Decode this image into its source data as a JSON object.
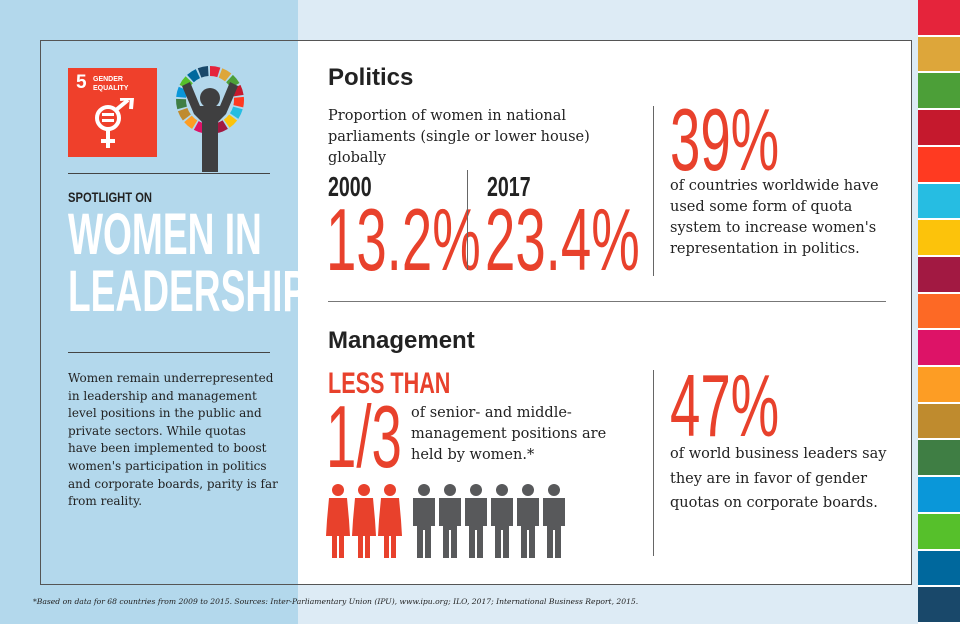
{
  "sdg_badge": {
    "number": "5",
    "title_line1": "GENDER",
    "title_line2": "EQUALITY"
  },
  "left": {
    "kicker": "SPOTLIGHT ON",
    "title_line1": "WOMEN IN",
    "title_line2": "LEADERSHIP",
    "body": "Women remain underrepresented in leadership and management level positions in the public and private sectors. While quotas have been implemented to boost women's participation in politics and corporate boards, parity is far from reality."
  },
  "politics": {
    "heading": "Politics",
    "subtitle": "Proportion of women in national parliaments (single or lower house) globally",
    "year1": "2000",
    "value1": "13.2%",
    "year2": "2017",
    "value2": "23.4%",
    "stat": "39%",
    "stat_text": "of countries worldwide have used some form of quota system to increase women's representation in politics."
  },
  "management": {
    "heading": "Management",
    "less_than": "LESS THAN",
    "fraction": "1/3",
    "fraction_text": "of senior- and middle-management positions are held by women.*",
    "people_highlighted": 3,
    "people_total": 9,
    "stat": "47%",
    "stat_text": "of world business leaders say they are in favor of gender quotas on corporate boards."
  },
  "footnote": "*Based on data for 68 countries from 2009 to 2015. Sources: Inter-Parliamentary Union (IPU), www.ipu.org; ILO, 2017; International Business Report, 2015.",
  "colors": {
    "accent": "#e8412c",
    "sdg5": "#ef402b",
    "panel": "#b3d8ec",
    "person_gray": "#58595b",
    "strip": [
      "#e5243b",
      "#dda63a",
      "#4c9f38",
      "#c5192d",
      "#ff3a21",
      "#26bde2",
      "#fcc30b",
      "#a21942",
      "#fd6925",
      "#dd1367",
      "#fd9d24",
      "#bf8b2e",
      "#3f7e44",
      "#0a97d9",
      "#56c02b",
      "#00689d",
      "#19486a"
    ]
  }
}
